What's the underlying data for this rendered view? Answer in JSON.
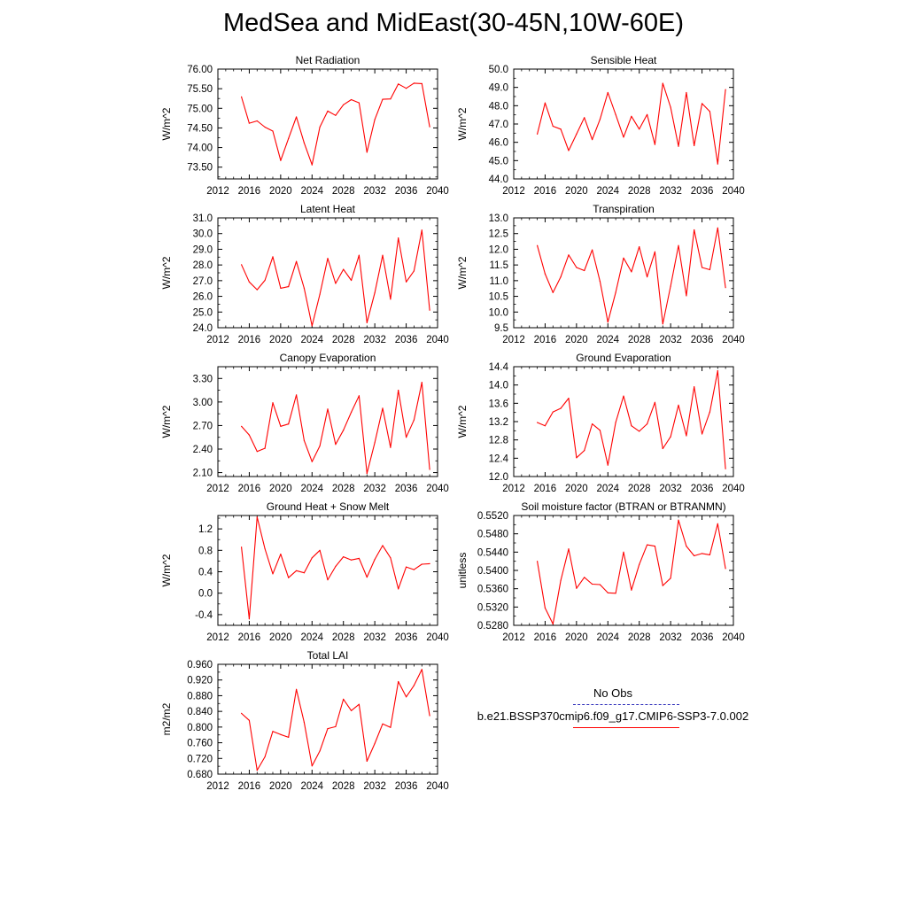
{
  "title": "MedSea and MidEast(30-45N,10W-60E)",
  "legend": {
    "items": [
      {
        "label": "No Obs",
        "color": "#2a2ab8",
        "style": "dashed"
      },
      {
        "label": "b.e21.BSSP370cmip6.f09_g17.CMIP6-SSP3-7.0.002",
        "color": "#ff0000",
        "style": "solid"
      }
    ]
  },
  "chart_data": [
    {
      "type": "line",
      "title": "Net Radiation",
      "ylabel": "W/m^2",
      "xlim": [
        2012,
        2040
      ],
      "xticks": [
        2012,
        2016,
        2020,
        2024,
        2028,
        2032,
        2036,
        2040
      ],
      "ylim": [
        73.2,
        76.0
      ],
      "yticks": [
        73.5,
        74.0,
        74.5,
        75.0,
        75.5,
        76.0
      ],
      "ytick_labels": [
        "73.50",
        "74.00",
        "74.50",
        "75.00",
        "75.50",
        "76.00"
      ],
      "x": [
        2015,
        2016,
        2017,
        2018,
        2019,
        2020,
        2021,
        2022,
        2023,
        2024,
        2025,
        2026,
        2027,
        2028,
        2029,
        2030,
        2031,
        2032,
        2033,
        2034,
        2035,
        2036,
        2037,
        2038,
        2039
      ],
      "series": [
        {
          "color": "#ff0000",
          "values": [
            75.29,
            74.62,
            74.68,
            74.52,
            74.42,
            73.67,
            74.23,
            74.78,
            74.12,
            73.56,
            74.52,
            74.93,
            74.82,
            75.09,
            75.22,
            75.14,
            73.88,
            74.71,
            75.23,
            75.24,
            75.62,
            75.51,
            75.64,
            75.63,
            74.53
          ]
        }
      ]
    },
    {
      "type": "line",
      "title": "Sensible Heat",
      "ylabel": "W/m^2",
      "xlim": [
        2012,
        2040
      ],
      "xticks": [
        2012,
        2016,
        2020,
        2024,
        2028,
        2032,
        2036,
        2040
      ],
      "ylim": [
        44.0,
        50.0
      ],
      "yticks": [
        44.0,
        45.0,
        46.0,
        47.0,
        48.0,
        49.0,
        50.0
      ],
      "ytick_labels": [
        "44.0",
        "45.0",
        "46.0",
        "47.0",
        "48.0",
        "49.0",
        "50.0"
      ],
      "x": [
        2015,
        2016,
        2017,
        2018,
        2019,
        2020,
        2021,
        2022,
        2023,
        2024,
        2025,
        2026,
        2027,
        2028,
        2029,
        2030,
        2031,
        2032,
        2033,
        2034,
        2035,
        2036,
        2037,
        2038,
        2039
      ],
      "series": [
        {
          "color": "#ff0000",
          "values": [
            46.45,
            48.15,
            46.88,
            46.72,
            45.55,
            46.45,
            47.35,
            46.15,
            47.25,
            48.72,
            47.52,
            46.28,
            47.42,
            46.72,
            47.52,
            45.88,
            49.22,
            47.92,
            45.78,
            48.72,
            45.82,
            48.12,
            47.68,
            44.82,
            48.88
          ]
        }
      ]
    },
    {
      "type": "line",
      "title": "Latent Heat",
      "ylabel": "W/m^2",
      "xlim": [
        2012,
        2040
      ],
      "xticks": [
        2012,
        2016,
        2020,
        2024,
        2028,
        2032,
        2036,
        2040
      ],
      "ylim": [
        24.0,
        31.0
      ],
      "yticks": [
        24.0,
        25.0,
        26.0,
        27.0,
        28.0,
        29.0,
        30.0,
        31.0
      ],
      "ytick_labels": [
        "24.0",
        "25.0",
        "26.0",
        "27.0",
        "28.0",
        "29.0",
        "30.0",
        "31.0"
      ],
      "x": [
        2015,
        2016,
        2017,
        2018,
        2019,
        2020,
        2021,
        2022,
        2023,
        2024,
        2025,
        2026,
        2027,
        2028,
        2029,
        2030,
        2031,
        2032,
        2033,
        2034,
        2035,
        2036,
        2037,
        2038,
        2039
      ],
      "series": [
        {
          "color": "#ff0000",
          "values": [
            28.02,
            26.92,
            26.42,
            27.02,
            28.52,
            26.52,
            26.62,
            28.22,
            26.52,
            24.12,
            26.12,
            28.42,
            26.82,
            27.72,
            27.02,
            28.62,
            24.32,
            26.22,
            28.62,
            25.82,
            29.72,
            26.92,
            27.62,
            30.22,
            25.12
          ]
        }
      ]
    },
    {
      "type": "line",
      "title": "Transpiration",
      "ylabel": "W/m^2",
      "xlim": [
        2012,
        2040
      ],
      "xticks": [
        2012,
        2016,
        2020,
        2024,
        2028,
        2032,
        2036,
        2040
      ],
      "ylim": [
        9.5,
        13.0
      ],
      "yticks": [
        9.5,
        10.0,
        10.5,
        11.0,
        11.5,
        12.0,
        12.5,
        13.0
      ],
      "ytick_labels": [
        "9.5",
        "10.0",
        "10.5",
        "11.0",
        "11.5",
        "12.0",
        "12.5",
        "13.0"
      ],
      "x": [
        2015,
        2016,
        2017,
        2018,
        2019,
        2020,
        2021,
        2022,
        2023,
        2024,
        2025,
        2026,
        2027,
        2028,
        2029,
        2030,
        2031,
        2032,
        2033,
        2034,
        2035,
        2036,
        2037,
        2038,
        2039
      ],
      "series": [
        {
          "color": "#ff0000",
          "values": [
            12.12,
            11.22,
            10.62,
            11.12,
            11.82,
            11.42,
            11.32,
            11.98,
            10.98,
            9.68,
            10.62,
            11.72,
            11.28,
            12.08,
            11.12,
            11.92,
            9.62,
            10.82,
            12.12,
            10.52,
            12.62,
            11.42,
            11.35,
            12.68,
            10.78
          ]
        }
      ]
    },
    {
      "type": "line",
      "title": "Canopy Evaporation",
      "ylabel": "W/m^2",
      "xlim": [
        2012,
        2040
      ],
      "xticks": [
        2012,
        2016,
        2020,
        2024,
        2028,
        2032,
        2036,
        2040
      ],
      "ylim": [
        2.05,
        3.45
      ],
      "yticks": [
        2.1,
        2.4,
        2.7,
        3.0,
        3.3
      ],
      "ytick_labels": [
        "2.10",
        "2.40",
        "2.70",
        "3.00",
        "3.30"
      ],
      "x": [
        2015,
        2016,
        2017,
        2018,
        2019,
        2020,
        2021,
        2022,
        2023,
        2024,
        2025,
        2026,
        2027,
        2028,
        2029,
        2030,
        2031,
        2032,
        2033,
        2034,
        2035,
        2036,
        2037,
        2038,
        2039
      ],
      "series": [
        {
          "color": "#ff0000",
          "values": [
            2.69,
            2.58,
            2.37,
            2.41,
            2.99,
            2.69,
            2.72,
            3.09,
            2.51,
            2.24,
            2.44,
            2.91,
            2.46,
            2.64,
            2.87,
            3.08,
            2.09,
            2.48,
            2.92,
            2.42,
            3.15,
            2.55,
            2.77,
            3.25,
            2.14
          ]
        }
      ]
    },
    {
      "type": "line",
      "title": "Ground Evaporation",
      "ylabel": "W/m^2",
      "xlim": [
        2012,
        2040
      ],
      "xticks": [
        2012,
        2016,
        2020,
        2024,
        2028,
        2032,
        2036,
        2040
      ],
      "ylim": [
        12.0,
        14.4
      ],
      "yticks": [
        12.0,
        12.4,
        12.8,
        13.2,
        13.6,
        14.0,
        14.4
      ],
      "ytick_labels": [
        "12.0",
        "12.4",
        "12.8",
        "13.2",
        "13.6",
        "14.0",
        "14.4"
      ],
      "x": [
        2015,
        2016,
        2017,
        2018,
        2019,
        2020,
        2021,
        2022,
        2023,
        2024,
        2025,
        2026,
        2027,
        2028,
        2029,
        2030,
        2031,
        2032,
        2033,
        2034,
        2035,
        2036,
        2037,
        2038,
        2039
      ],
      "series": [
        {
          "color": "#ff0000",
          "values": [
            13.18,
            13.11,
            13.41,
            13.49,
            13.71,
            12.41,
            12.57,
            13.15,
            13.01,
            12.25,
            13.18,
            13.76,
            13.11,
            12.99,
            13.15,
            13.62,
            12.61,
            12.87,
            13.56,
            12.89,
            13.96,
            12.93,
            13.41,
            14.31,
            12.17
          ]
        }
      ]
    },
    {
      "type": "line",
      "title": "Ground Heat + Snow Melt",
      "ylabel": "W/m^2",
      "xlim": [
        2012,
        2040
      ],
      "xticks": [
        2012,
        2016,
        2020,
        2024,
        2028,
        2032,
        2036,
        2040
      ],
      "ylim": [
        -0.6,
        1.45
      ],
      "yticks": [
        -0.4,
        0.0,
        0.4,
        0.8,
        1.2
      ],
      "ytick_labels": [
        "-0.4",
        "0.0",
        "0.4",
        "0.8",
        "1.2"
      ],
      "x": [
        2015,
        2016,
        2017,
        2018,
        2019,
        2020,
        2021,
        2022,
        2023,
        2024,
        2025,
        2026,
        2027,
        2028,
        2029,
        2030,
        2031,
        2032,
        2033,
        2034,
        2035,
        2036,
        2037,
        2038,
        2039
      ],
      "series": [
        {
          "color": "#ff0000",
          "values": [
            0.86,
            -0.48,
            1.42,
            0.83,
            0.36,
            0.73,
            0.29,
            0.42,
            0.38,
            0.66,
            0.8,
            0.25,
            0.5,
            0.68,
            0.62,
            0.65,
            0.3,
            0.63,
            0.89,
            0.66,
            0.08,
            0.49,
            0.44,
            0.54,
            0.55
          ]
        }
      ]
    },
    {
      "type": "line",
      "title": "Soil moisture factor (BTRAN or BTRANMN)",
      "ylabel": "unitless",
      "xlim": [
        2012,
        2040
      ],
      "xticks": [
        2012,
        2016,
        2020,
        2024,
        2028,
        2032,
        2036,
        2040
      ],
      "ylim": [
        0.528,
        0.552
      ],
      "yticks": [
        0.528,
        0.532,
        0.536,
        0.54,
        0.544,
        0.548,
        0.552
      ],
      "ytick_labels": [
        "0.5280",
        "0.5320",
        "0.5360",
        "0.5400",
        "0.5440",
        "0.5480",
        "0.5520"
      ],
      "x": [
        2015,
        2016,
        2017,
        2018,
        2019,
        2020,
        2021,
        2022,
        2023,
        2024,
        2025,
        2026,
        2027,
        2028,
        2029,
        2030,
        2031,
        2032,
        2033,
        2034,
        2035,
        2036,
        2037,
        2038,
        2039
      ],
      "series": [
        {
          "color": "#ff0000",
          "values": [
            0.542,
            0.5318,
            0.5283,
            0.5378,
            0.5447,
            0.5361,
            0.5385,
            0.537,
            0.5369,
            0.5351,
            0.535,
            0.544,
            0.5357,
            0.5413,
            0.5456,
            0.5453,
            0.5367,
            0.5383,
            0.551,
            0.5453,
            0.5432,
            0.5437,
            0.5434,
            0.5502,
            0.5404
          ]
        }
      ]
    },
    {
      "type": "line",
      "title": "Total LAI",
      "ylabel": "m2/m2",
      "xlim": [
        2012,
        2040
      ],
      "xticks": [
        2012,
        2016,
        2020,
        2024,
        2028,
        2032,
        2036,
        2040
      ],
      "ylim": [
        0.68,
        0.96
      ],
      "yticks": [
        0.68,
        0.72,
        0.76,
        0.8,
        0.84,
        0.88,
        0.92,
        0.96
      ],
      "ytick_labels": [
        "0.680",
        "0.720",
        "0.760",
        "0.800",
        "0.840",
        "0.880",
        "0.920",
        "0.960"
      ],
      "x": [
        2015,
        2016,
        2017,
        2018,
        2019,
        2020,
        2021,
        2022,
        2023,
        2024,
        2025,
        2026,
        2027,
        2028,
        2029,
        2030,
        2031,
        2032,
        2033,
        2034,
        2035,
        2036,
        2037,
        2038,
        2039
      ],
      "series": [
        {
          "color": "#ff0000",
          "values": [
            0.835,
            0.817,
            0.69,
            0.724,
            0.789,
            0.781,
            0.774,
            0.896,
            0.812,
            0.701,
            0.739,
            0.796,
            0.801,
            0.871,
            0.842,
            0.858,
            0.713,
            0.758,
            0.808,
            0.799,
            0.916,
            0.877,
            0.906,
            0.947,
            0.829
          ]
        }
      ]
    }
  ]
}
